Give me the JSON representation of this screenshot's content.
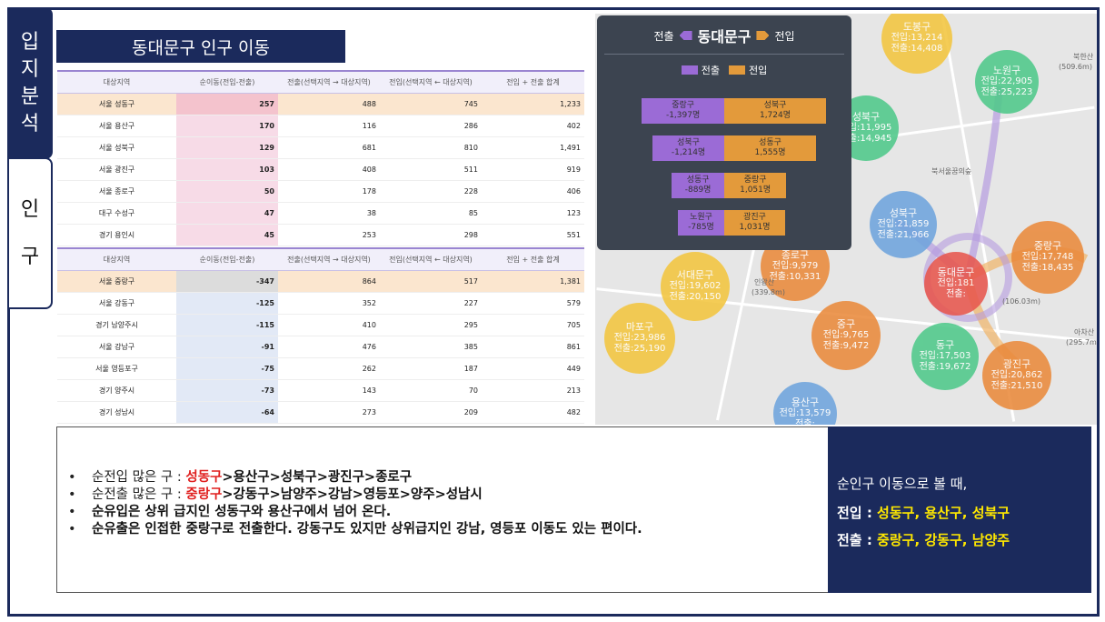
{
  "tabs": [
    {
      "label": "입지분석",
      "chars": [
        "입",
        "지",
        "분",
        "석"
      ]
    },
    {
      "label": "인구",
      "chars": [
        "인",
        "구"
      ]
    }
  ],
  "title": "동대문구 인구 이동",
  "table1": {
    "headers": [
      "대상지역",
      "순이동(전입-전출)",
      "전출(선택지역 → 대상지역)",
      "전입(선택지역 ← 대상지역)",
      "전입 + 전출 합계"
    ],
    "rows": [
      [
        "서울 성동구",
        "257",
        "488",
        "745",
        "1,233"
      ],
      [
        "서울 용산구",
        "170",
        "116",
        "286",
        "402"
      ],
      [
        "서울 성북구",
        "129",
        "681",
        "810",
        "1,491"
      ],
      [
        "서울 광진구",
        "103",
        "408",
        "511",
        "919"
      ],
      [
        "서울 종로구",
        "50",
        "178",
        "228",
        "406"
      ],
      [
        "대구 수성구",
        "47",
        "38",
        "85",
        "123"
      ],
      [
        "경기 용인시",
        "45",
        "253",
        "298",
        "551"
      ]
    ]
  },
  "table2": {
    "headers": [
      "대상지역",
      "순이동(전입-전출)",
      "전출(선택지역 → 대상지역)",
      "전입(선택지역 ← 대상지역)",
      "전입 + 전출 합계"
    ],
    "rows": [
      [
        "서울 중랑구",
        "-347",
        "864",
        "517",
        "1,381"
      ],
      [
        "서울 강동구",
        "-125",
        "352",
        "227",
        "579"
      ],
      [
        "경기 남양주시",
        "-115",
        "410",
        "295",
        "705"
      ],
      [
        "서울 강남구",
        "-91",
        "476",
        "385",
        "861"
      ],
      [
        "서울 영등포구",
        "-75",
        "262",
        "187",
        "449"
      ],
      [
        "경기 양주시",
        "-73",
        "143",
        "70",
        "213"
      ],
      [
        "경기 성남시",
        "-64",
        "273",
        "209",
        "482"
      ]
    ]
  },
  "panel": {
    "out_label": "전출",
    "center_label": "동대문구",
    "in_label": "전입",
    "legend_out": "전출",
    "legend_in": "전입",
    "colors": {
      "out": "#9b6bd6",
      "in": "#e39a3b"
    },
    "bars": [
      {
        "out_name": "중랑구",
        "out_val": "-1,397명",
        "in_name": "성북구",
        "in_val": "1,724명"
      },
      {
        "out_name": "성북구",
        "out_val": "-1,214명",
        "in_name": "성동구",
        "in_val": "1,555명"
      },
      {
        "out_name": "성동구",
        "out_val": "-889명",
        "in_name": "중랑구",
        "in_val": "1,051명"
      },
      {
        "out_name": "노원구",
        "out_val": "-785명",
        "in_name": "광진구",
        "in_val": "1,031명"
      }
    ]
  },
  "map": {
    "bubbles": [
      {
        "name": "도봉구",
        "l1": "전입:13,214",
        "l2": "전출:14,408",
        "color": "#f3c63f"
      },
      {
        "name": "노원구",
        "l1": "전입:22,905",
        "l2": "전출:25,223",
        "color": "#4fc98a"
      },
      {
        "name": "성북구",
        "l1": "전입:11,995",
        "l2": "전출:14,945",
        "color": "#4fc98a"
      },
      {
        "name": "성북구",
        "l1": "전입:21,859",
        "l2": "전출:21,966",
        "color": "#6fa5dd"
      },
      {
        "name": "중랑구",
        "l1": "전입:17,748",
        "l2": "전출:18,435",
        "color": "#ea8a3c"
      },
      {
        "name": "동대문구",
        "l1": "전입:181",
        "l2": "전출:",
        "color": "#e8574e"
      },
      {
        "name": "종로구",
        "l1": "전입:9,979",
        "l2": "전출:10,331",
        "color": "#ea8a3c"
      },
      {
        "name": "서대문구",
        "l1": "전입:19,602",
        "l2": "전출:20,150",
        "color": "#f3c63f"
      },
      {
        "name": "마포구",
        "l1": "전입:23,986",
        "l2": "전출:25,190",
        "color": "#f3c63f"
      },
      {
        "name": "중구",
        "l1": "전입:9,765",
        "l2": "전출:9,472",
        "color": "#ea8a3c"
      },
      {
        "name": "동구",
        "l1": "전입:17,503",
        "l2": "전출:19,672",
        "color": "#4fc98a"
      },
      {
        "name": "광진구",
        "l1": "전입:20,862",
        "l2": "전출:21,510",
        "color": "#ea8a3c"
      },
      {
        "name": "용산구",
        "l1": "전입:13,579",
        "l2": "전출:",
        "color": "#6fa5dd"
      }
    ],
    "labels": [
      "북한산",
      "(509.6m)",
      "인왕산",
      "(339.8m)",
      "아차산",
      "(295.7m)",
      "(106.03m)",
      "북서울꿈의숲"
    ]
  },
  "summary": {
    "bullets": [
      {
        "prefix": "순전입 많은 구 : ",
        "highlight": "성동구",
        "rest": ">용산구>성북구>광진구>종로구"
      },
      {
        "prefix": "순전출 많은 구 : ",
        "highlight": "중랑구",
        "rest": ">강동구>남양주>강남>영등포>양주>성남시"
      },
      {
        "text": "순유입은 상위 급지인 성동구와 용산구에서 넘어 온다."
      },
      {
        "text": "순유출은 인접한 중랑구로 전출한다. 강동구도 있지만 상위급지인 강남, 영등포 이동도 있는 편이다."
      }
    ],
    "bullet_glyph": "•"
  },
  "side": {
    "intro": "순인구 이동으로 볼 때,",
    "in_label": "전입 : ",
    "in_value": "성동구, 용산구, 성북구",
    "out_label": "전출 : ",
    "out_value": "중랑구, 강동구, 남양주"
  }
}
